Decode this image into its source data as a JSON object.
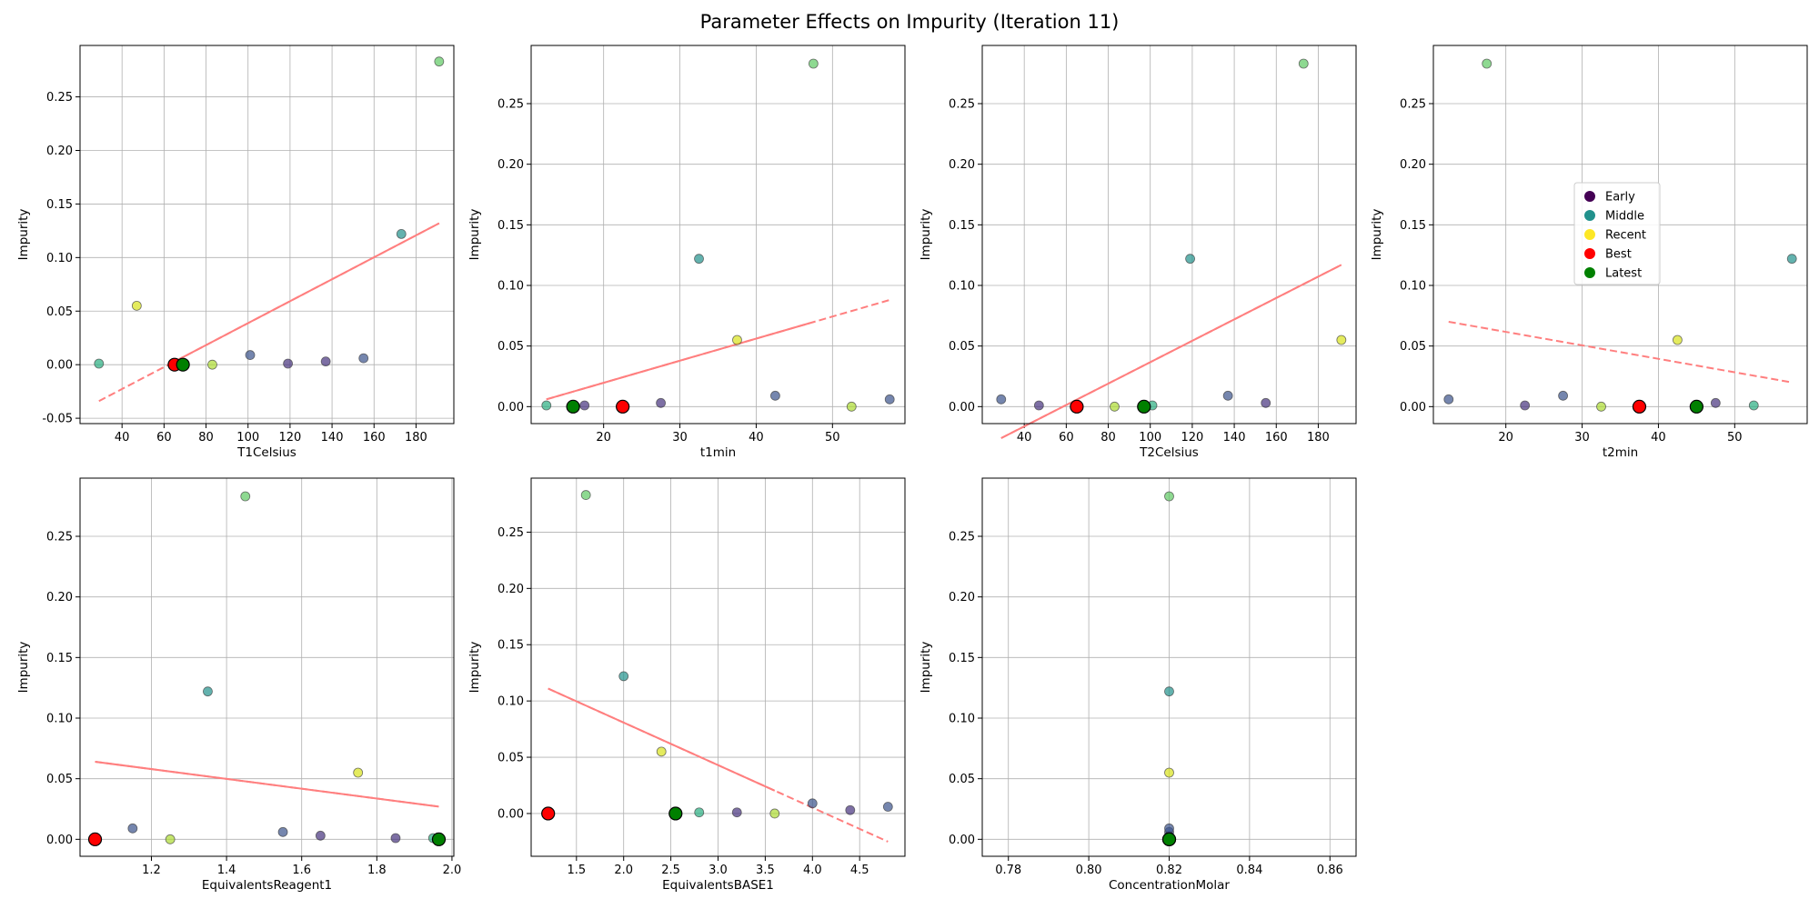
{
  "figure": {
    "title": "Parameter Effects on Impurity (Iteration 11)"
  },
  "legend": {
    "placement": "center-left of t2min panel",
    "items": [
      {
        "label": "Early",
        "color": "#440154"
      },
      {
        "label": "Middle",
        "color": "#21918c"
      },
      {
        "label": "Recent",
        "color": "#fde725"
      },
      {
        "label": "Best",
        "color": "#ff0000"
      },
      {
        "label": "Latest",
        "color": "#008000"
      }
    ]
  },
  "chart_data": [
    {
      "type": "scatter",
      "xlabel": "T1Celsius",
      "ylabel": "Impurity",
      "xlim": [
        20,
        198
      ],
      "ylim": [
        -0.055,
        0.298
      ],
      "xticks": [
        40,
        60,
        80,
        100,
        120,
        140,
        160,
        180
      ],
      "yticks": [
        -0.05,
        0.0,
        0.05,
        0.1,
        0.15,
        0.2,
        0.25
      ],
      "grid": true,
      "points": [
        {
          "x": 137,
          "y": 0.003,
          "color": "#46327e"
        },
        {
          "x": 119,
          "y": 0.001,
          "color": "#46327e"
        },
        {
          "x": 155,
          "y": 0.006,
          "color": "#3b528b"
        },
        {
          "x": 101,
          "y": 0.009,
          "color": "#3b528b"
        },
        {
          "x": 173,
          "y": 0.122,
          "color": "#21918c"
        },
        {
          "x": 29,
          "y": 0.001,
          "color": "#28ae80"
        },
        {
          "x": 191,
          "y": 0.283,
          "color": "#5ec962"
        },
        {
          "x": 83,
          "y": 0.0,
          "color": "#addc30"
        },
        {
          "x": 47,
          "y": 0.055,
          "color": "#d8e219"
        }
      ],
      "best": {
        "x": 65,
        "y": 0.0
      },
      "latest": {
        "x": 69,
        "y": 0.0
      },
      "trend": {
        "x": [
          29,
          191
        ],
        "y": [
          -0.034,
          0.132
        ],
        "solid_from": 65
      }
    },
    {
      "type": "scatter",
      "xlabel": "t1min",
      "ylabel": "Impurity",
      "xlim": [
        10.5,
        59.5
      ],
      "ylim": [
        -0.014,
        0.298
      ],
      "xticks": [
        20,
        30,
        40,
        50
      ],
      "yticks": [
        0.0,
        0.05,
        0.1,
        0.15,
        0.2,
        0.25
      ],
      "grid": true,
      "points": [
        {
          "x": 27.5,
          "y": 0.003,
          "color": "#46327e"
        },
        {
          "x": 17.5,
          "y": 0.001,
          "color": "#46327e"
        },
        {
          "x": 57.5,
          "y": 0.006,
          "color": "#3b528b"
        },
        {
          "x": 42.5,
          "y": 0.009,
          "color": "#3b528b"
        },
        {
          "x": 32.5,
          "y": 0.122,
          "color": "#21918c"
        },
        {
          "x": 12.5,
          "y": 0.001,
          "color": "#28ae80"
        },
        {
          "x": 47.5,
          "y": 0.283,
          "color": "#5ec962"
        },
        {
          "x": 52.5,
          "y": 0.0,
          "color": "#addc30"
        },
        {
          "x": 37.5,
          "y": 0.055,
          "color": "#d8e219"
        }
      ],
      "best": {
        "x": 22.5,
        "y": 0.0
      },
      "latest": {
        "x": 16,
        "y": 0.0
      },
      "trend": {
        "x": [
          12.5,
          57.5
        ],
        "y": [
          0.006,
          0.088
        ],
        "solid_from": 12.5,
        "solid_to": 47
      }
    },
    {
      "type": "scatter",
      "xlabel": "T2Celsius",
      "ylabel": "Impurity",
      "xlim": [
        20,
        198
      ],
      "ylim": [
        -0.014,
        0.298
      ],
      "xticks": [
        40,
        60,
        80,
        100,
        120,
        140,
        160,
        180
      ],
      "yticks": [
        0.0,
        0.05,
        0.1,
        0.15,
        0.2,
        0.25
      ],
      "grid": true,
      "points": [
        {
          "x": 155,
          "y": 0.003,
          "color": "#46327e"
        },
        {
          "x": 47,
          "y": 0.001,
          "color": "#46327e"
        },
        {
          "x": 29,
          "y": 0.006,
          "color": "#3b528b"
        },
        {
          "x": 137,
          "y": 0.009,
          "color": "#3b528b"
        },
        {
          "x": 119,
          "y": 0.122,
          "color": "#21918c"
        },
        {
          "x": 101,
          "y": 0.001,
          "color": "#28ae80"
        },
        {
          "x": 173,
          "y": 0.283,
          "color": "#5ec962"
        },
        {
          "x": 83,
          "y": 0.0,
          "color": "#addc30"
        },
        {
          "x": 191,
          "y": 0.055,
          "color": "#d8e219"
        }
      ],
      "best": {
        "x": 65,
        "y": 0.0
      },
      "latest": {
        "x": 97,
        "y": 0.0
      },
      "trend": {
        "x": [
          29,
          191
        ],
        "y": [
          -0.026,
          0.117
        ],
        "solid_from": 29
      }
    },
    {
      "type": "scatter",
      "xlabel": "t2min",
      "ylabel": "Impurity",
      "xlim": [
        10.5,
        59.5
      ],
      "ylim": [
        -0.014,
        0.298
      ],
      "xticks": [
        20,
        30,
        40,
        50
      ],
      "yticks": [
        0.0,
        0.05,
        0.1,
        0.15,
        0.2,
        0.25
      ],
      "grid": true,
      "points": [
        {
          "x": 47.5,
          "y": 0.003,
          "color": "#46327e"
        },
        {
          "x": 22.5,
          "y": 0.001,
          "color": "#46327e"
        },
        {
          "x": 12.5,
          "y": 0.006,
          "color": "#3b528b"
        },
        {
          "x": 27.5,
          "y": 0.009,
          "color": "#3b528b"
        },
        {
          "x": 57.5,
          "y": 0.122,
          "color": "#21918c"
        },
        {
          "x": 52.5,
          "y": 0.001,
          "color": "#28ae80"
        },
        {
          "x": 17.5,
          "y": 0.283,
          "color": "#5ec962"
        },
        {
          "x": 32.5,
          "y": 0.0,
          "color": "#addc30"
        },
        {
          "x": 42.5,
          "y": 0.055,
          "color": "#d8e219"
        }
      ],
      "best": {
        "x": 37.5,
        "y": 0.0
      },
      "latest": {
        "x": 45,
        "y": 0.0
      },
      "trend": {
        "x": [
          12.5,
          57.5
        ],
        "y": [
          0.07,
          0.02
        ],
        "solid_from": 12.5,
        "solid_to": 12.5
      }
    },
    {
      "type": "scatter",
      "xlabel": "EquivalentsReagent1",
      "ylabel": "Impurity",
      "xlim": [
        1.01,
        2.005
      ],
      "ylim": [
        -0.014,
        0.298
      ],
      "xticks": [
        1.2,
        1.4,
        1.6,
        1.8,
        2.0
      ],
      "yticks": [
        0.0,
        0.05,
        0.1,
        0.15,
        0.2,
        0.25
      ],
      "grid": true,
      "points": [
        {
          "x": 1.65,
          "y": 0.003,
          "color": "#46327e"
        },
        {
          "x": 1.85,
          "y": 0.001,
          "color": "#46327e"
        },
        {
          "x": 1.55,
          "y": 0.006,
          "color": "#3b528b"
        },
        {
          "x": 1.15,
          "y": 0.009,
          "color": "#3b528b"
        },
        {
          "x": 1.35,
          "y": 0.122,
          "color": "#21918c"
        },
        {
          "x": 1.95,
          "y": 0.001,
          "color": "#28ae80"
        },
        {
          "x": 1.45,
          "y": 0.283,
          "color": "#5ec962"
        },
        {
          "x": 1.25,
          "y": 0.0,
          "color": "#addc30"
        },
        {
          "x": 1.75,
          "y": 0.055,
          "color": "#d8e219"
        }
      ],
      "best": {
        "x": 1.05,
        "y": 0.0
      },
      "latest": {
        "x": 1.965,
        "y": 0.0
      },
      "trend": {
        "x": [
          1.05,
          1.965
        ],
        "y": [
          0.064,
          0.027
        ],
        "solid_from": 1.05
      }
    },
    {
      "type": "scatter",
      "xlabel": "EquivalentsBASE1",
      "ylabel": "Impurity",
      "xlim": [
        1.02,
        4.98
      ],
      "ylim": [
        -0.038,
        0.298
      ],
      "xticks": [
        1.5,
        2.0,
        2.5,
        3.0,
        3.5,
        4.0,
        4.5
      ],
      "yticks": [
        0.0,
        0.05,
        0.1,
        0.15,
        0.2,
        0.25
      ],
      "grid": true,
      "points": [
        {
          "x": 4.4,
          "y": 0.003,
          "color": "#46327e"
        },
        {
          "x": 3.2,
          "y": 0.001,
          "color": "#46327e"
        },
        {
          "x": 4.8,
          "y": 0.006,
          "color": "#3b528b"
        },
        {
          "x": 4.0,
          "y": 0.009,
          "color": "#3b528b"
        },
        {
          "x": 2.0,
          "y": 0.122,
          "color": "#21918c"
        },
        {
          "x": 2.8,
          "y": 0.001,
          "color": "#28ae80"
        },
        {
          "x": 1.6,
          "y": 0.283,
          "color": "#5ec962"
        },
        {
          "x": 3.6,
          "y": 0.0,
          "color": "#addc30"
        },
        {
          "x": 2.4,
          "y": 0.055,
          "color": "#d8e219"
        }
      ],
      "best": {
        "x": 1.2,
        "y": 0.0
      },
      "latest": {
        "x": 2.55,
        "y": 0.0
      },
      "trend": {
        "x": [
          1.2,
          4.8
        ],
        "y": [
          0.111,
          -0.025
        ],
        "solid_from": 1.2,
        "solid_to": 3.6
      }
    },
    {
      "type": "scatter",
      "xlabel": "ConcentrationMolar",
      "ylabel": "Impurity",
      "xlim": [
        0.7735,
        0.8665
      ],
      "ylim": [
        -0.014,
        0.298
      ],
      "xticks": [
        0.78,
        0.8,
        0.82,
        0.84,
        0.86
      ],
      "yticks": [
        0.0,
        0.05,
        0.1,
        0.15,
        0.2,
        0.25
      ],
      "grid": true,
      "points": [
        {
          "x": 0.82,
          "y": 0.003,
          "color": "#46327e"
        },
        {
          "x": 0.82,
          "y": 0.006,
          "color": "#3b528b"
        },
        {
          "x": 0.82,
          "y": 0.009,
          "color": "#3b528b"
        },
        {
          "x": 0.82,
          "y": 0.122,
          "color": "#21918c"
        },
        {
          "x": 0.82,
          "y": 0.001,
          "color": "#28ae80"
        },
        {
          "x": 0.82,
          "y": 0.283,
          "color": "#5ec962"
        },
        {
          "x": 0.82,
          "y": 0.0,
          "color": "#addc30"
        },
        {
          "x": 0.82,
          "y": 0.055,
          "color": "#d8e219"
        }
      ],
      "best": {
        "x": 0.82,
        "y": 0.0
      },
      "latest": {
        "x": 0.82,
        "y": 0.0
      },
      "trend": null
    }
  ]
}
